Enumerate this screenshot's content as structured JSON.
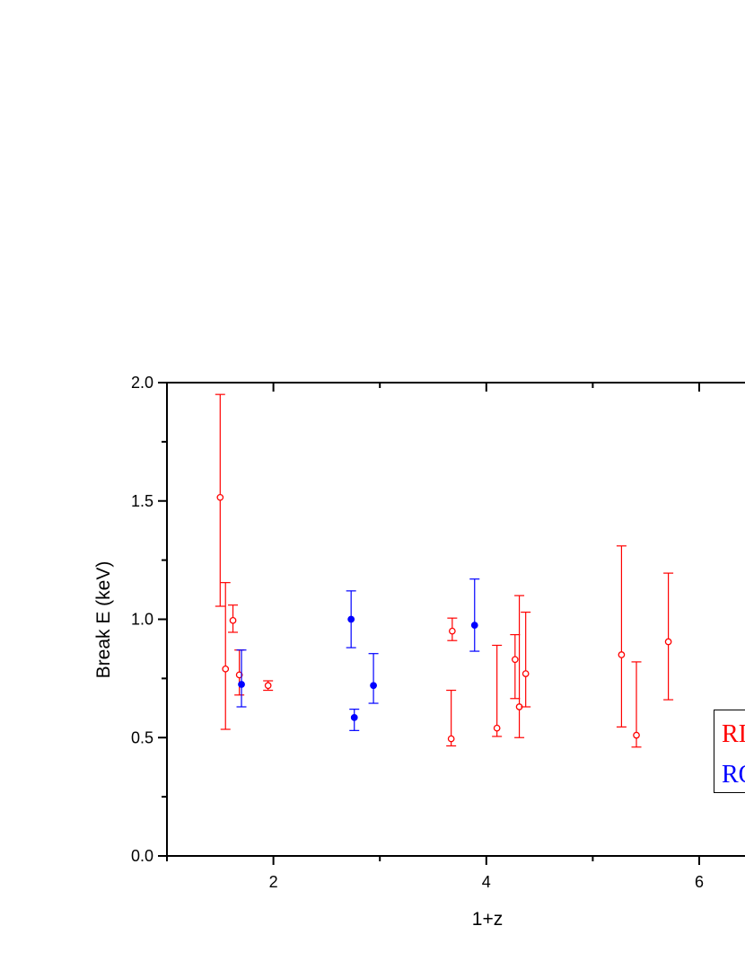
{
  "chart_data": {
    "type": "scatter",
    "title": "",
    "xlabel": "1+z",
    "ylabel": "Break E (keV)",
    "xlim": [
      1.0,
      7.0
    ],
    "ylim": [
      0.0,
      2.0
    ],
    "x_ticks": [
      2,
      4,
      6
    ],
    "x_tick_labels": [
      "2",
      "4",
      "6"
    ],
    "y_ticks": [
      0.0,
      0.5,
      1.0,
      1.5,
      2.0
    ],
    "y_tick_labels": [
      "0.0",
      "0.5",
      "1.0",
      "1.5",
      "2.0"
    ],
    "grid": false,
    "legend_placement": "bottom-right",
    "series": [
      {
        "name": "RI",
        "color": "#ff0000",
        "marker": "open-circle",
        "points": [
          {
            "x": 1.5,
            "y": 1.515,
            "yerr_low": 1.055,
            "yerr_high": 1.95
          },
          {
            "x": 1.55,
            "y": 0.79,
            "yerr_low": 0.535,
            "yerr_high": 1.155
          },
          {
            "x": 1.62,
            "y": 0.995,
            "yerr_low": 0.945,
            "yerr_high": 1.06
          },
          {
            "x": 1.68,
            "y": 0.765,
            "yerr_low": 0.68,
            "yerr_high": 0.87
          },
          {
            "x": 1.95,
            "y": 0.72,
            "yerr_low": 0.7,
            "yerr_high": 0.74
          },
          {
            "x": 3.67,
            "y": 0.495,
            "yerr_low": 0.465,
            "yerr_high": 0.7
          },
          {
            "x": 3.68,
            "y": 0.95,
            "yerr_low": 0.91,
            "yerr_high": 1.005
          },
          {
            "x": 4.1,
            "y": 0.54,
            "yerr_low": 0.505,
            "yerr_high": 0.89
          },
          {
            "x": 4.27,
            "y": 0.83,
            "yerr_low": 0.665,
            "yerr_high": 0.935
          },
          {
            "x": 4.31,
            "y": 0.63,
            "yerr_low": 0.5,
            "yerr_high": 1.1
          },
          {
            "x": 4.37,
            "y": 0.77,
            "yerr_low": 0.63,
            "yerr_high": 1.03
          },
          {
            "x": 5.27,
            "y": 0.85,
            "yerr_low": 0.545,
            "yerr_high": 1.31
          },
          {
            "x": 5.41,
            "y": 0.51,
            "yerr_low": 0.46,
            "yerr_high": 0.82
          },
          {
            "x": 5.71,
            "y": 0.905,
            "yerr_low": 0.66,
            "yerr_high": 1.195
          }
        ]
      },
      {
        "name": "RO",
        "color": "#0000ff",
        "marker": "filled-circle",
        "points": [
          {
            "x": 1.7,
            "y": 0.725,
            "yerr_low": 0.63,
            "yerr_high": 0.87
          },
          {
            "x": 2.73,
            "y": 1.0,
            "yerr_low": 0.88,
            "yerr_high": 1.12
          },
          {
            "x": 2.76,
            "y": 0.585,
            "yerr_low": 0.53,
            "yerr_high": 0.62
          },
          {
            "x": 2.94,
            "y": 0.72,
            "yerr_low": 0.645,
            "yerr_high": 0.855
          },
          {
            "x": 3.89,
            "y": 0.975,
            "yerr_low": 0.865,
            "yerr_high": 1.17
          }
        ]
      }
    ]
  }
}
